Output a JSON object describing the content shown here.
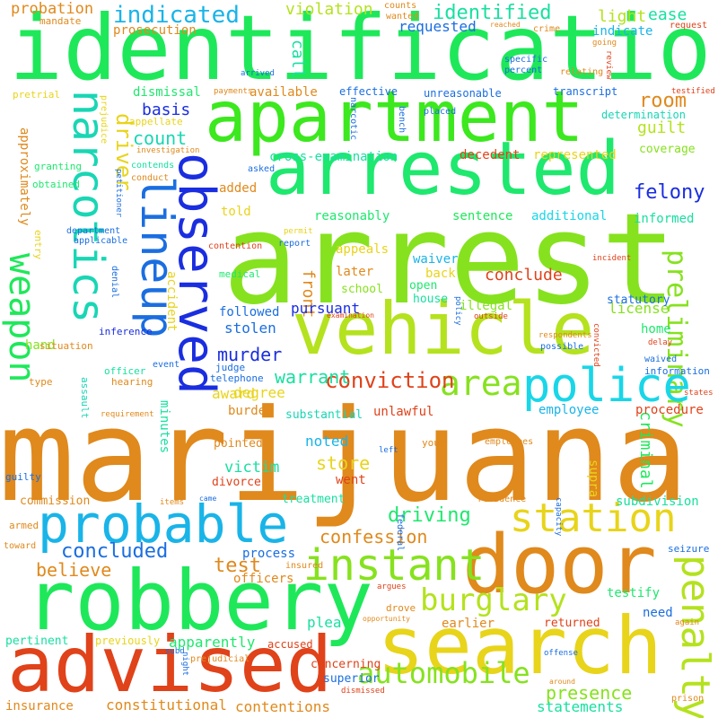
{
  "palette": {
    "orange": "#e0891c",
    "green": "#1ee85a",
    "lime": "#86e21e",
    "yellow": "#e8d41a",
    "cyan": "#19d6d6",
    "sky": "#19b4e8",
    "blue": "#1a2ee0",
    "red": "#e0421a",
    "teal": "#18e0a0"
  },
  "words": {
    "marijuana": "marijuana",
    "arrest": "arrest",
    "identification": "identification",
    "apartment": "apartment",
    "arrested": "arrested",
    "vehicle": "vehicle",
    "search": "search",
    "robbery": "robbery",
    "door": "door",
    "advised": "advised",
    "probable": "probable",
    "lineup": "lineup",
    "observed": "observed",
    "narcotics": "narcotics",
    "police": "police",
    "instant": "instant",
    "station": "station",
    "weapon": "weapon",
    "penalty": "penalty",
    "automobile": "automobile",
    "burglary": "burglary",
    "area": "area",
    "conviction": "conviction",
    "confession": "confession",
    "indicated": "indicated",
    "identified": "identified",
    "concluded": "concluded",
    "murder": "murder",
    "warrant": "warrant",
    "presence": "presence",
    "driving": "driving",
    "preliminary": "preliminary",
    "store": "store",
    "test": "test",
    "believe": "believe",
    "conclude": "conclude",
    "felony": "felony",
    "count": "count",
    "driver": "driver",
    "basis": "basis",
    "room": "room",
    "guilt": "guilt",
    "violation": "violation",
    "probation": "probation",
    "light": "light",
    "ease": "ease",
    "requested": "requested",
    "prosecution": "prosecution",
    "indicate": "indicate",
    "criminal": "criminal",
    "victim": "victim",
    "apparently": "apparently",
    "constitutional": "constitutional",
    "contentions": "contentions",
    "statements": "statements",
    "cross_examination": "cross-examination",
    "decedent": "decedent",
    "represented": "represented",
    "coverage": "coverage",
    "informed": "informed",
    "additional": "additional",
    "sentence": "sentence",
    "reasonably": "reasonably",
    "told": "told",
    "added": "added",
    "approximately": "approximately",
    "accident": "accident",
    "front": "front",
    "later": "later",
    "appeals": "appeals",
    "waiver": "waiver",
    "back": "back",
    "open": "open",
    "house": "house",
    "school": "school",
    "illegal": "illegal",
    "license": "license",
    "home": "home",
    "pursuant": "pursuant",
    "followed": "followed",
    "stolen": "stolen",
    "degree": "degree",
    "award": "award",
    "burden": "burden",
    "unlawful": "unlawful",
    "procedure": "procedure",
    "employee": "employee",
    "noted": "noted",
    "substantial": "substantial",
    "minutes": "minutes",
    "pointed": "pointed",
    "divorce": "divorce",
    "supra": "supra",
    "went": "went",
    "subdivision": "subdivision",
    "treatment": "treatment",
    "commission": "commission",
    "plea": "plea",
    "earlier": "earlier",
    "returned": "returned",
    "testify": "testify",
    "need": "need",
    "pertinent": "pertinent",
    "previously": "previously",
    "accused": "accused",
    "concerning": "concerning",
    "superior": "superior",
    "insurance": "insurance",
    "process": "process",
    "officers": "officers",
    "dismissal": "dismissal",
    "available": "available",
    "effective": "effective",
    "unreasonable": "unreasonable",
    "transcript": "transcript",
    "determination": "determination",
    "call": "call",
    "hand": "hand",
    "statutory": "statutory",
    "entry": "entry",
    "inference": "inference",
    "situation": "situation",
    "officer": "officer",
    "type": "type",
    "guilty": "guilty",
    "armed": "armed",
    "toward": "toward",
    "assault": "assault",
    "hearing": "hearing",
    "judge": "judge",
    "telephone": "telephone",
    "event": "event",
    "report": "report",
    "asked": "asked",
    "contention": "contention",
    "department": "department",
    "applicable": "applicable",
    "denial": "denial",
    "medical": "medical",
    "obtained": "obtained",
    "granting": "granting",
    "petitioner": "petitioner",
    "conduct": "conduct",
    "contends": "contends",
    "appellate": "appellate",
    "prejudice": "prejudice",
    "investigation": "investigation",
    "payments": "payments",
    "pretrial": "pretrial",
    "mandate": "mandate",
    "counts": "counts",
    "wanted": "wanted",
    "reached": "reached",
    "crime": "crime",
    "specific": "specific",
    "percent": "percent",
    "relating": "relating",
    "going": "going",
    "review": "review",
    "request": "request",
    "testified": "testified",
    "arrived": "arrived",
    "bench": "bench",
    "placed": "placed",
    "permit": "permit",
    "incident": "incident",
    "examination": "examination",
    "policy": "policy",
    "outside": "outside",
    "respondents": "respondents",
    "possible": "possible",
    "convicted": "convicted",
    "delay": "delay",
    "waived": "waived",
    "information": "information",
    "states": "states",
    "requirement": "requirement",
    "items": "items",
    "came": "came",
    "prejudicial": "prejudicial",
    "residence": "residence",
    "capacity": "capacity",
    "federal": "federal",
    "your": "your",
    "employees": "employees",
    "left": "left",
    "seizure": "seizure",
    "insured": "insured",
    "argues": "argues",
    "drove": "drove",
    "opportunity": "opportunity",
    "dismissed": "dismissed",
    "offense": "offense",
    "again": "again",
    "subd": "subd",
    "night": "night",
    "around": "around",
    "prison": "prison",
    "narcotic": "narcotic"
  }
}
